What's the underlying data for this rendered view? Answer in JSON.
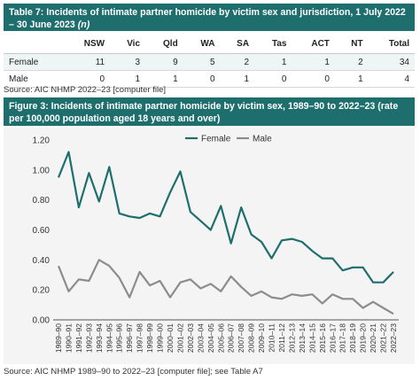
{
  "table": {
    "caption": "Table 7: Incidents of intimate partner homicide by victim sex and jurisdiction, 1 July 2022 – 30 June 2023",
    "caption_suffix": "(n)",
    "columns": [
      "",
      "NSW",
      "Vic",
      "Qld",
      "WA",
      "SA",
      "Tas",
      "ACT",
      "NT",
      "Total"
    ],
    "rows": [
      {
        "label": "Female",
        "values": [
          "11",
          "3",
          "9",
          "5",
          "2",
          "1",
          "1",
          "2",
          "34"
        ]
      },
      {
        "label": "Male",
        "values": [
          "0",
          "1",
          "1",
          "0",
          "1",
          "0",
          "0",
          "1",
          "4"
        ]
      }
    ],
    "source": "Source: AIC NHMP 2022–23 [computer file]"
  },
  "figure": {
    "caption": "Figure 3: Incidents of intimate partner homicide by victim sex, 1989–90 to 2022–23 (rate per 100,000 population aged 18 years and over)",
    "source": "Source: AIC NHMP 1989–90 to 2022–23 [computer file]; see Table A7"
  },
  "chart_data": {
    "type": "line",
    "title": "",
    "xlabel": "",
    "ylabel": "",
    "ylim": [
      0,
      1.2
    ],
    "yticks": [
      "0.00",
      "0.20",
      "0.40",
      "0.60",
      "0.80",
      "1.00",
      "1.20"
    ],
    "grid": false,
    "legend_position": "top-center",
    "categories": [
      "1989–90",
      "1990–91",
      "1991–92",
      "1992–93",
      "1993–94",
      "1994–95",
      "1995–96",
      "1996–97",
      "1997–98",
      "1998–99",
      "1999–00",
      "2000–01",
      "2001–02",
      "2002–03",
      "2003–04",
      "2004–05",
      "2005–06",
      "2006–07",
      "2007–08",
      "2008–09",
      "2009–10",
      "2010–11",
      "2011–12",
      "2012–13",
      "2013–14",
      "2014–15",
      "2015–16",
      "2016–17",
      "2017–18",
      "2018–19",
      "2019–20",
      "2020–21",
      "2021–22",
      "2022–23"
    ],
    "series": [
      {
        "name": "Female",
        "color": "#1e6e6e",
        "values": [
          0.95,
          1.12,
          0.75,
          0.98,
          0.79,
          1.02,
          0.71,
          0.69,
          0.68,
          0.71,
          0.69,
          0.85,
          0.99,
          0.72,
          0.66,
          0.6,
          0.76,
          0.51,
          0.75,
          0.57,
          0.52,
          0.41,
          0.53,
          0.54,
          0.52,
          0.46,
          0.41,
          0.41,
          0.33,
          0.35,
          0.35,
          0.25,
          0.25,
          0.32
        ]
      },
      {
        "name": "Male",
        "color": "#8c8c8c",
        "values": [
          0.36,
          0.19,
          0.27,
          0.26,
          0.4,
          0.36,
          0.28,
          0.15,
          0.32,
          0.23,
          0.26,
          0.15,
          0.25,
          0.27,
          0.21,
          0.24,
          0.19,
          0.29,
          0.22,
          0.16,
          0.19,
          0.15,
          0.14,
          0.17,
          0.16,
          0.17,
          0.11,
          0.17,
          0.14,
          0.14,
          0.08,
          0.12,
          0.08,
          0.04
        ]
      }
    ]
  }
}
